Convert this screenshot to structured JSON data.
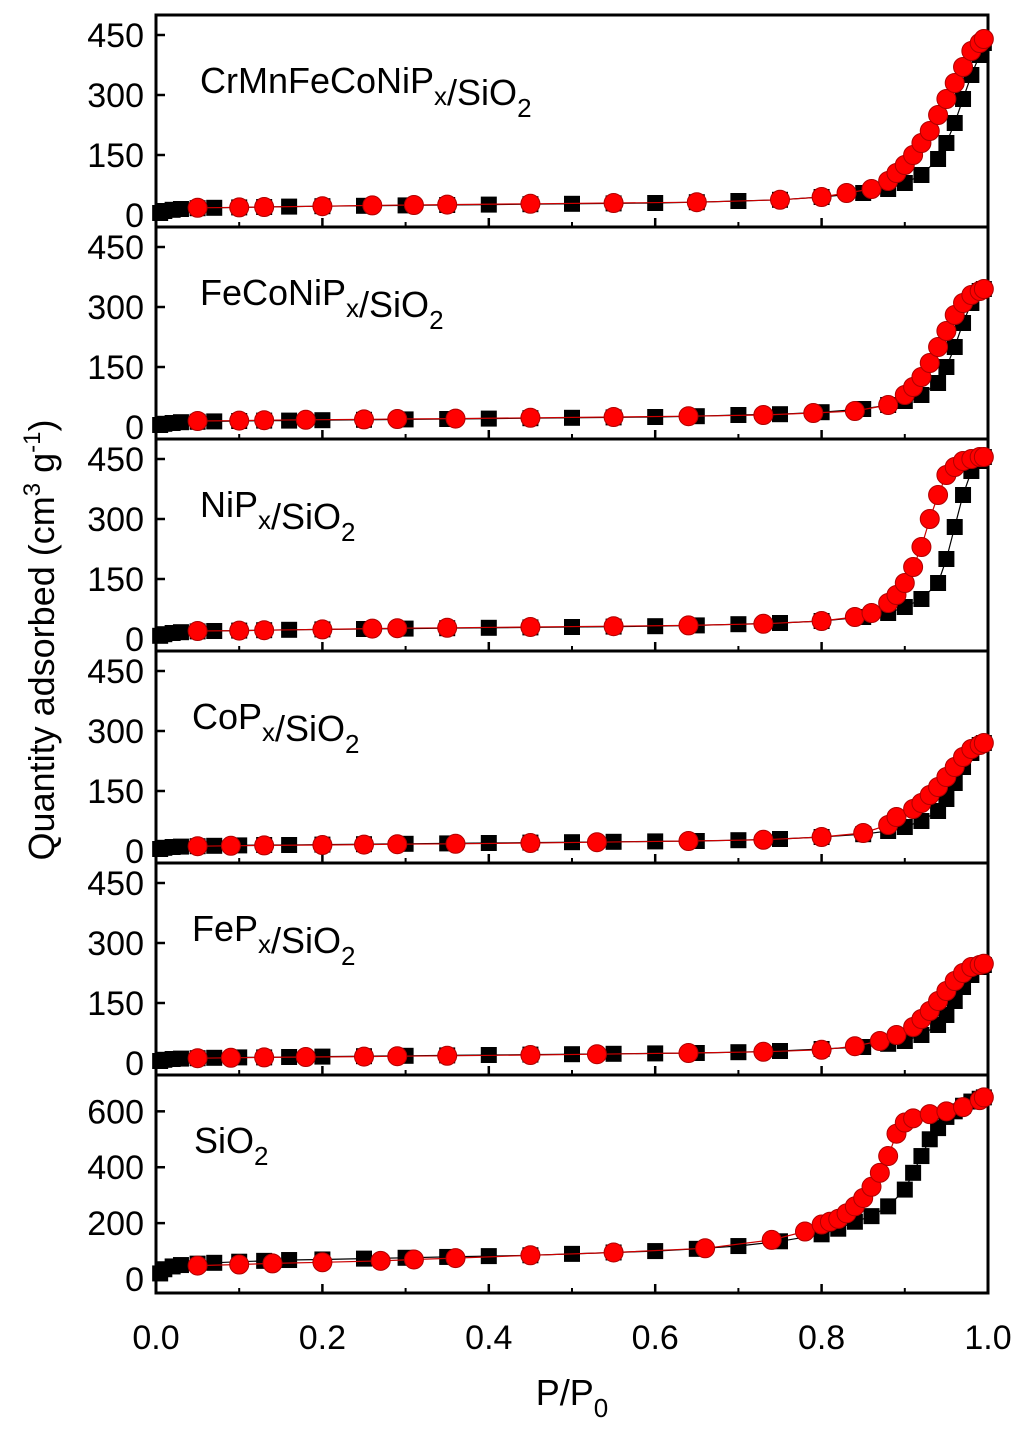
{
  "figure": {
    "ylabel": "Quantity adsorbed (cm3 g-1)",
    "ylabel_parts": {
      "base": "Quantity adsorbed (cm",
      "sup1": "3",
      "mid": " g",
      "sup2": "-1",
      "end": ")"
    },
    "xlabel": "P/P0",
    "xlabel_parts": {
      "base": "P/P",
      "sub": "0"
    },
    "x_ticks": [
      "0.0",
      "0.2",
      "0.4",
      "0.6",
      "0.8",
      "1.0"
    ],
    "colors": {
      "adsorption": "#000000",
      "desorption": "#ff0000",
      "desorption_line": "#cc0000"
    }
  },
  "chart_data": [
    {
      "type": "scatter",
      "title": "CrMnFeCoNiPx/SiO2",
      "title_parts": [
        {
          "t": "CrMnFeCoNiP"
        },
        {
          "t": "x",
          "sub": true
        },
        {
          "t": "/SiO"
        },
        {
          "t": "2",
          "sub": true
        }
      ],
      "xlim": [
        0,
        1
      ],
      "ylim": [
        -30,
        500
      ],
      "yticks": [
        0,
        150,
        300,
        450
      ],
      "series": [
        {
          "role": "adsorption",
          "marker": "square",
          "x": [
            0.005,
            0.01,
            0.02,
            0.03,
            0.05,
            0.07,
            0.1,
            0.13,
            0.16,
            0.2,
            0.25,
            0.3,
            0.35,
            0.4,
            0.45,
            0.5,
            0.55,
            0.6,
            0.65,
            0.7,
            0.75,
            0.8,
            0.85,
            0.88,
            0.9,
            0.92,
            0.94,
            0.95,
            0.96,
            0.97,
            0.98,
            0.99,
            0.995
          ],
          "y": [
            5,
            10,
            13,
            15,
            17,
            18,
            19,
            20,
            21,
            22,
            23,
            24,
            25,
            26,
            27,
            28,
            29,
            30,
            32,
            35,
            38,
            45,
            55,
            65,
            80,
            100,
            140,
            180,
            230,
            290,
            350,
            400,
            430
          ]
        },
        {
          "role": "desorption",
          "marker": "circle",
          "x": [
            0.05,
            0.1,
            0.13,
            0.2,
            0.26,
            0.31,
            0.35,
            0.45,
            0.55,
            0.65,
            0.75,
            0.8,
            0.83,
            0.86,
            0.88,
            0.89,
            0.9,
            0.91,
            0.92,
            0.93,
            0.94,
            0.95,
            0.96,
            0.97,
            0.98,
            0.99,
            0.995
          ],
          "y": [
            18,
            19,
            20,
            22,
            24,
            25,
            26,
            28,
            30,
            32,
            38,
            45,
            55,
            65,
            85,
            105,
            125,
            150,
            180,
            210,
            250,
            290,
            330,
            370,
            410,
            430,
            440
          ]
        }
      ]
    },
    {
      "type": "scatter",
      "title": "FeCoNiPx/SiO2",
      "title_parts": [
        {
          "t": "FeCoNiP"
        },
        {
          "t": "x",
          "sub": true
        },
        {
          "t": "/SiO"
        },
        {
          "t": "2",
          "sub": true
        }
      ],
      "xlim": [
        0,
        1
      ],
      "ylim": [
        -30,
        500
      ],
      "yticks": [
        0,
        150,
        300,
        450
      ],
      "series": [
        {
          "role": "adsorption",
          "marker": "square",
          "x": [
            0.005,
            0.01,
            0.02,
            0.03,
            0.05,
            0.07,
            0.1,
            0.13,
            0.16,
            0.2,
            0.25,
            0.3,
            0.35,
            0.4,
            0.45,
            0.5,
            0.55,
            0.6,
            0.65,
            0.7,
            0.75,
            0.8,
            0.85,
            0.88,
            0.9,
            0.92,
            0.94,
            0.95,
            0.96,
            0.97,
            0.98,
            0.99,
            0.995
          ],
          "y": [
            5,
            8,
            10,
            12,
            13,
            14,
            15,
            16,
            16,
            17,
            18,
            19,
            20,
            21,
            22,
            23,
            24,
            25,
            27,
            30,
            32,
            37,
            45,
            55,
            65,
            80,
            110,
            150,
            200,
            260,
            310,
            340,
            345
          ]
        },
        {
          "role": "desorption",
          "marker": "circle",
          "x": [
            0.05,
            0.1,
            0.13,
            0.18,
            0.25,
            0.29,
            0.36,
            0.45,
            0.55,
            0.64,
            0.73,
            0.79,
            0.84,
            0.88,
            0.9,
            0.91,
            0.92,
            0.93,
            0.94,
            0.95,
            0.96,
            0.97,
            0.98,
            0.99,
            0.995
          ],
          "y": [
            15,
            16,
            17,
            18,
            19,
            20,
            21,
            23,
            25,
            27,
            30,
            35,
            40,
            55,
            80,
            100,
            125,
            160,
            200,
            240,
            280,
            310,
            330,
            340,
            345
          ]
        }
      ]
    },
    {
      "type": "scatter",
      "title": "NiPx/SiO2",
      "title_parts": [
        {
          "t": "NiP"
        },
        {
          "t": "x",
          "sub": true
        },
        {
          "t": "/SiO"
        },
        {
          "t": "2",
          "sub": true
        }
      ],
      "xlim": [
        0,
        1
      ],
      "ylim": [
        -30,
        500
      ],
      "yticks": [
        0,
        150,
        300,
        450
      ],
      "series": [
        {
          "role": "adsorption",
          "marker": "square",
          "x": [
            0.005,
            0.01,
            0.02,
            0.03,
            0.05,
            0.07,
            0.1,
            0.13,
            0.16,
            0.2,
            0.25,
            0.3,
            0.35,
            0.4,
            0.45,
            0.5,
            0.55,
            0.6,
            0.65,
            0.7,
            0.75,
            0.8,
            0.85,
            0.88,
            0.9,
            0.92,
            0.94,
            0.95,
            0.96,
            0.97,
            0.98,
            0.99,
            0.995
          ],
          "y": [
            8,
            12,
            15,
            17,
            19,
            20,
            21,
            22,
            23,
            24,
            25,
            26,
            27,
            28,
            29,
            30,
            31,
            32,
            34,
            37,
            40,
            45,
            55,
            65,
            80,
            100,
            140,
            200,
            280,
            360,
            420,
            445,
            455
          ]
        },
        {
          "role": "desorption",
          "marker": "circle",
          "x": [
            0.05,
            0.1,
            0.13,
            0.2,
            0.26,
            0.29,
            0.35,
            0.45,
            0.55,
            0.64,
            0.73,
            0.8,
            0.84,
            0.86,
            0.88,
            0.89,
            0.9,
            0.91,
            0.92,
            0.93,
            0.94,
            0.95,
            0.96,
            0.97,
            0.98,
            0.99,
            0.995
          ],
          "y": [
            20,
            21,
            22,
            24,
            26,
            27,
            28,
            30,
            32,
            34,
            38,
            45,
            55,
            65,
            90,
            110,
            140,
            180,
            230,
            300,
            360,
            410,
            430,
            445,
            450,
            455,
            455
          ]
        }
      ]
    },
    {
      "type": "scatter",
      "title": "CoPx/SiO2",
      "title_parts": [
        {
          "t": "CoP"
        },
        {
          "t": "x",
          "sub": true
        },
        {
          "t": "/SiO"
        },
        {
          "t": "2",
          "sub": true
        }
      ],
      "xlim": [
        0,
        1
      ],
      "ylim": [
        -30,
        500
      ],
      "yticks": [
        0,
        150,
        300,
        450
      ],
      "series": [
        {
          "role": "adsorption",
          "marker": "square",
          "x": [
            0.005,
            0.01,
            0.02,
            0.03,
            0.05,
            0.07,
            0.1,
            0.13,
            0.16,
            0.2,
            0.25,
            0.3,
            0.35,
            0.4,
            0.45,
            0.5,
            0.55,
            0.6,
            0.65,
            0.7,
            0.75,
            0.8,
            0.85,
            0.88,
            0.9,
            0.92,
            0.94,
            0.95,
            0.96,
            0.97,
            0.98,
            0.99,
            0.995
          ],
          "y": [
            5,
            8,
            10,
            11,
            12,
            13,
            14,
            15,
            15,
            16,
            17,
            18,
            19,
            20,
            21,
            22,
            23,
            24,
            25,
            27,
            30,
            35,
            42,
            50,
            60,
            75,
            100,
            130,
            170,
            210,
            245,
            265,
            270
          ]
        },
        {
          "role": "desorption",
          "marker": "circle",
          "x": [
            0.05,
            0.09,
            0.13,
            0.2,
            0.25,
            0.29,
            0.36,
            0.45,
            0.53,
            0.64,
            0.73,
            0.8,
            0.85,
            0.88,
            0.89,
            0.91,
            0.92,
            0.93,
            0.94,
            0.95,
            0.96,
            0.97,
            0.98,
            0.99,
            0.995
          ],
          "y": [
            12,
            13,
            14,
            15,
            16,
            17,
            18,
            20,
            22,
            25,
            28,
            35,
            45,
            65,
            85,
            105,
            120,
            140,
            160,
            185,
            210,
            235,
            255,
            265,
            270
          ]
        }
      ]
    },
    {
      "type": "scatter",
      "title": "FePx/SiO2",
      "title_parts": [
        {
          "t": "FeP"
        },
        {
          "t": "x",
          "sub": true
        },
        {
          "t": "/SiO"
        },
        {
          "t": "2",
          "sub": true
        }
      ],
      "xlim": [
        0,
        1
      ],
      "ylim": [
        -30,
        500
      ],
      "yticks": [
        0,
        150,
        300,
        450
      ],
      "series": [
        {
          "role": "adsorption",
          "marker": "square",
          "x": [
            0.005,
            0.01,
            0.02,
            0.03,
            0.05,
            0.07,
            0.1,
            0.13,
            0.16,
            0.2,
            0.25,
            0.3,
            0.35,
            0.4,
            0.45,
            0.5,
            0.55,
            0.6,
            0.65,
            0.7,
            0.75,
            0.8,
            0.85,
            0.88,
            0.9,
            0.92,
            0.94,
            0.95,
            0.96,
            0.97,
            0.98,
            0.99,
            0.995
          ],
          "y": [
            5,
            8,
            10,
            11,
            12,
            13,
            14,
            14,
            15,
            16,
            17,
            18,
            19,
            20,
            21,
            22,
            23,
            24,
            25,
            27,
            30,
            35,
            40,
            48,
            55,
            70,
            95,
            120,
            155,
            190,
            220,
            240,
            245
          ]
        },
        {
          "role": "desorption",
          "marker": "circle",
          "x": [
            0.05,
            0.09,
            0.13,
            0.18,
            0.25,
            0.29,
            0.35,
            0.45,
            0.53,
            0.64,
            0.73,
            0.8,
            0.84,
            0.87,
            0.89,
            0.91,
            0.92,
            0.93,
            0.94,
            0.95,
            0.96,
            0.97,
            0.98,
            0.99,
            0.995
          ],
          "y": [
            12,
            13,
            14,
            15,
            16,
            17,
            18,
            20,
            22,
            25,
            28,
            33,
            42,
            55,
            70,
            90,
            110,
            130,
            155,
            180,
            205,
            225,
            240,
            245,
            248
          ]
        }
      ]
    },
    {
      "type": "scatter",
      "title": "SiO2",
      "title_parts": [
        {
          "t": "SiO"
        },
        {
          "t": "2",
          "sub": true
        }
      ],
      "xlim": [
        0,
        1
      ],
      "ylim": [
        -50,
        730
      ],
      "yticks": [
        0,
        200,
        400,
        600
      ],
      "series": [
        {
          "role": "adsorption",
          "marker": "square",
          "x": [
            0.005,
            0.01,
            0.02,
            0.03,
            0.05,
            0.07,
            0.1,
            0.13,
            0.16,
            0.2,
            0.25,
            0.3,
            0.35,
            0.4,
            0.45,
            0.5,
            0.55,
            0.6,
            0.65,
            0.7,
            0.75,
            0.8,
            0.82,
            0.84,
            0.86,
            0.88,
            0.9,
            0.91,
            0.92,
            0.93,
            0.94,
            0.95,
            0.96,
            0.97,
            0.98,
            0.99,
            0.995
          ],
          "y": [
            20,
            35,
            45,
            50,
            55,
            58,
            62,
            65,
            68,
            70,
            73,
            76,
            79,
            82,
            85,
            90,
            95,
            100,
            108,
            118,
            135,
            160,
            180,
            205,
            225,
            260,
            320,
            380,
            440,
            500,
            540,
            580,
            600,
            620,
            635,
            645,
            650
          ]
        },
        {
          "role": "desorption",
          "marker": "circle",
          "x": [
            0.05,
            0.1,
            0.14,
            0.2,
            0.27,
            0.31,
            0.36,
            0.45,
            0.55,
            0.66,
            0.74,
            0.78,
            0.8,
            0.81,
            0.82,
            0.83,
            0.84,
            0.85,
            0.86,
            0.87,
            0.88,
            0.89,
            0.9,
            0.91,
            0.93,
            0.95,
            0.97,
            0.99,
            0.995
          ],
          "y": [
            48,
            52,
            56,
            60,
            65,
            70,
            75,
            85,
            95,
            110,
            140,
            170,
            195,
            205,
            215,
            235,
            260,
            290,
            330,
            380,
            440,
            520,
            560,
            575,
            590,
            600,
            615,
            640,
            650
          ]
        }
      ]
    }
  ]
}
